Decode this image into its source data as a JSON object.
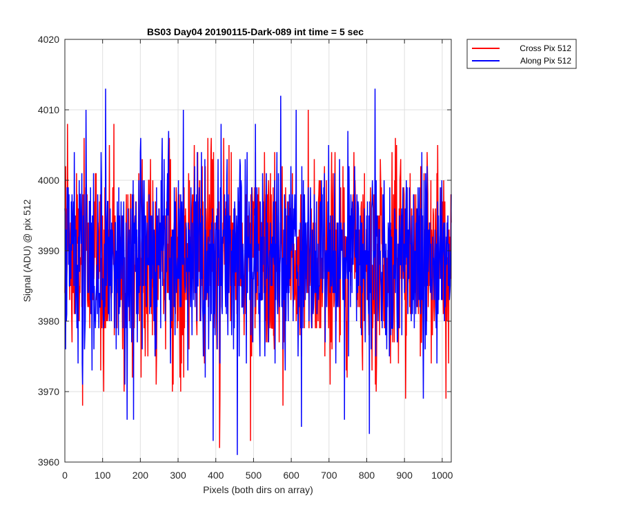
{
  "chart_data": {
    "type": "line",
    "title": "BS03 Day04 20190115-Dark-089 int time = 5 sec",
    "xlabel": "Pixels (both dirs on array)",
    "ylabel": "Signal (ADU) @ pix 512",
    "xlim": [
      0,
      1024
    ],
    "ylim": [
      3960,
      4020
    ],
    "xticks": [
      0,
      100,
      200,
      300,
      400,
      500,
      600,
      700,
      800,
      900,
      1000
    ],
    "yticks": [
      3960,
      3970,
      3980,
      3990,
      4000,
      4010,
      4020
    ],
    "grid": true,
    "legend_position": "outside-top-right",
    "series": [
      {
        "name": "Cross Pix 512",
        "color": "#ff0000",
        "mean": 3989,
        "approx_min": 3962,
        "approx_max": 4010,
        "peaks": [
          {
            "x": 7,
            "y": 4008
          },
          {
            "x": 47,
            "y": 3968
          },
          {
            "x": 130,
            "y": 4008
          },
          {
            "x": 315,
            "y": 3972
          },
          {
            "x": 388,
            "y": 4006
          },
          {
            "x": 410,
            "y": 3962
          },
          {
            "x": 492,
            "y": 3963
          },
          {
            "x": 578,
            "y": 3968
          },
          {
            "x": 645,
            "y": 4010
          },
          {
            "x": 825,
            "y": 3970
          },
          {
            "x": 903,
            "y": 3969
          },
          {
            "x": 1010,
            "y": 3969
          }
        ]
      },
      {
        "name": "Along Pix 512",
        "color": "#0000ff",
        "mean": 3989,
        "approx_min": 3961,
        "approx_max": 4014,
        "peaks": [
          {
            "x": 108,
            "y": 4013
          },
          {
            "x": 165,
            "y": 3966
          },
          {
            "x": 182,
            "y": 3966
          },
          {
            "x": 393,
            "y": 4014
          },
          {
            "x": 393,
            "y": 3963
          },
          {
            "x": 457,
            "y": 3961
          },
          {
            "x": 572,
            "y": 4012
          },
          {
            "x": 627,
            "y": 3965
          },
          {
            "x": 741,
            "y": 3966
          },
          {
            "x": 807,
            "y": 3964
          },
          {
            "x": 822,
            "y": 4013
          },
          {
            "x": 950,
            "y": 3969
          }
        ]
      }
    ]
  }
}
